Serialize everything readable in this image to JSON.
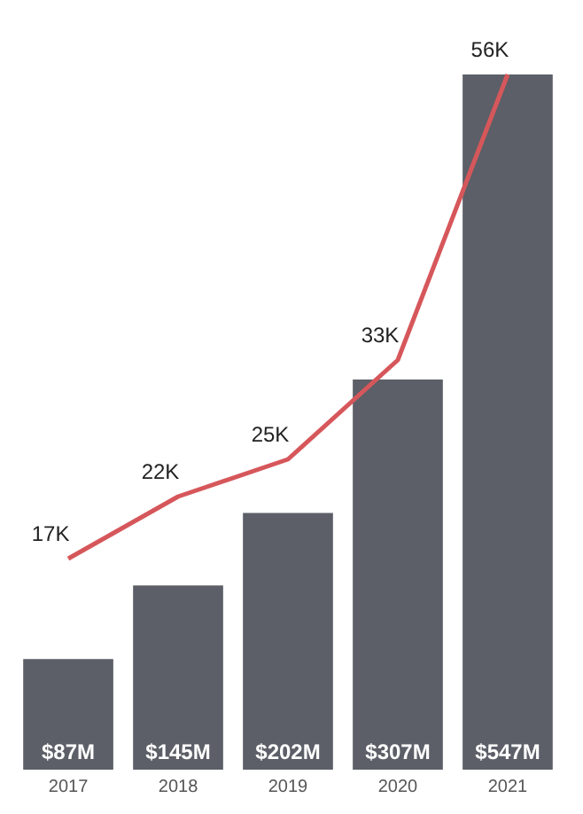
{
  "chart_data": {
    "type": "bar",
    "categories": [
      "2017",
      "2018",
      "2019",
      "2020",
      "2021"
    ],
    "series": [
      {
        "color": "#5c5f67",
        "values": [
          87,
          145,
          202,
          307,
          547
        ],
        "value_labels": [
          "$87M",
          "$145M",
          "$202M",
          "$307M",
          "$547M"
        ]
      },
      {
        "type": "line",
        "axis": "y2",
        "color": "#d6575b",
        "values": [
          17,
          22,
          25,
          33,
          56
        ],
        "value_labels": [
          "17K",
          "22K",
          "25K",
          "33K",
          "56K"
        ]
      }
    ],
    "tick_labels": "x",
    "marker": "none",
    "line_style": "solid"
  }
}
